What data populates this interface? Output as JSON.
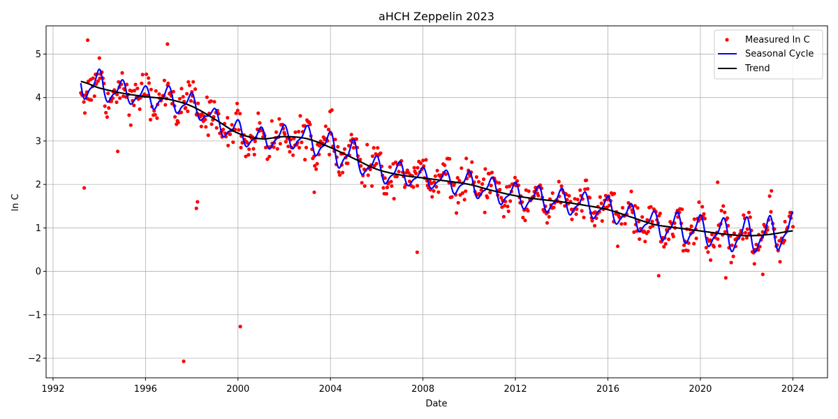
{
  "chart_data": {
    "type": "scatter",
    "title": "aHCH Zeppelin 2023",
    "xlabel": "Date",
    "ylabel": "ln C",
    "xlim": [
      1991.7,
      2025.5
    ],
    "ylim": [
      -2.45,
      5.65
    ],
    "x_ticks": [
      1992,
      1996,
      2000,
      2004,
      2008,
      2012,
      2016,
      2020,
      2024
    ],
    "y_ticks": [
      -2,
      -1,
      0,
      1,
      2,
      3,
      4,
      5
    ],
    "y_tick_labels": [
      "−2",
      "−1",
      "0",
      "1",
      "2",
      "3",
      "4",
      "5"
    ],
    "grid": true,
    "legend_position": "top-right",
    "legend": [
      {
        "label": "Measured ln C",
        "color": "#ff0000",
        "style": "marker"
      },
      {
        "label": "Seasonal Cycle",
        "color": "#0000ff",
        "style": "line"
      },
      {
        "label": "Trend",
        "color": "#000000",
        "style": "line"
      }
    ],
    "series": [
      {
        "name": "Trend",
        "color": "#000000",
        "x": [
          1993.2,
          1994,
          1995,
          1996,
          1997,
          1998,
          1999,
          2000,
          2001,
          2002,
          2003,
          2004,
          2005,
          2006,
          2007,
          2008,
          2009,
          2010,
          2011,
          2012,
          2013,
          2014,
          2015,
          2016,
          2017,
          2018,
          2019,
          2020,
          2021,
          2022,
          2023,
          2024
        ],
        "y": [
          4.37,
          4.22,
          4.1,
          4.02,
          3.96,
          3.8,
          3.5,
          3.18,
          3.05,
          3.1,
          3.05,
          2.85,
          2.6,
          2.35,
          2.22,
          2.15,
          2.08,
          2.0,
          1.86,
          1.74,
          1.66,
          1.6,
          1.52,
          1.42,
          1.25,
          1.08,
          1.0,
          0.93,
          0.86,
          0.82,
          0.85,
          0.93
        ]
      },
      {
        "name": "Seasonal Cycle",
        "color": "#0000ff",
        "amplitude": [
          0.35,
          0.25,
          0.2,
          0.25,
          0.25,
          0.2,
          0.25,
          0.22,
          0.22,
          0.25,
          0.3,
          0.35,
          0.25,
          0.25,
          0.2,
          0.2,
          0.25,
          0.25,
          0.25,
          0.25,
          0.25,
          0.25,
          0.25,
          0.25,
          0.25,
          0.3,
          0.3,
          0.3,
          0.35,
          0.35,
          0.35,
          0.35
        ],
        "peak_phase_year_fraction": 0.95
      },
      {
        "name": "Measured ln C",
        "color": "#ff0000",
        "outliers": [
          [
            1993.35,
            1.92
          ],
          [
            1994.8,
            2.76
          ],
          [
            1997.65,
            -2.07
          ],
          [
            1998.2,
            1.45
          ],
          [
            1998.25,
            1.6
          ],
          [
            2000.1,
            -1.27
          ],
          [
            2003.3,
            1.82
          ],
          [
            2007.75,
            0.44
          ],
          [
            2018.2,
            -0.1
          ],
          [
            2021.1,
            -0.15
          ],
          [
            2022.7,
            -0.07
          ],
          [
            1993.5,
            5.32
          ],
          [
            1996.95,
            5.23
          ],
          [
            2020.75,
            2.05
          ]
        ],
        "noise_sd": 0.2,
        "samples_per_year": 24
      }
    ]
  }
}
